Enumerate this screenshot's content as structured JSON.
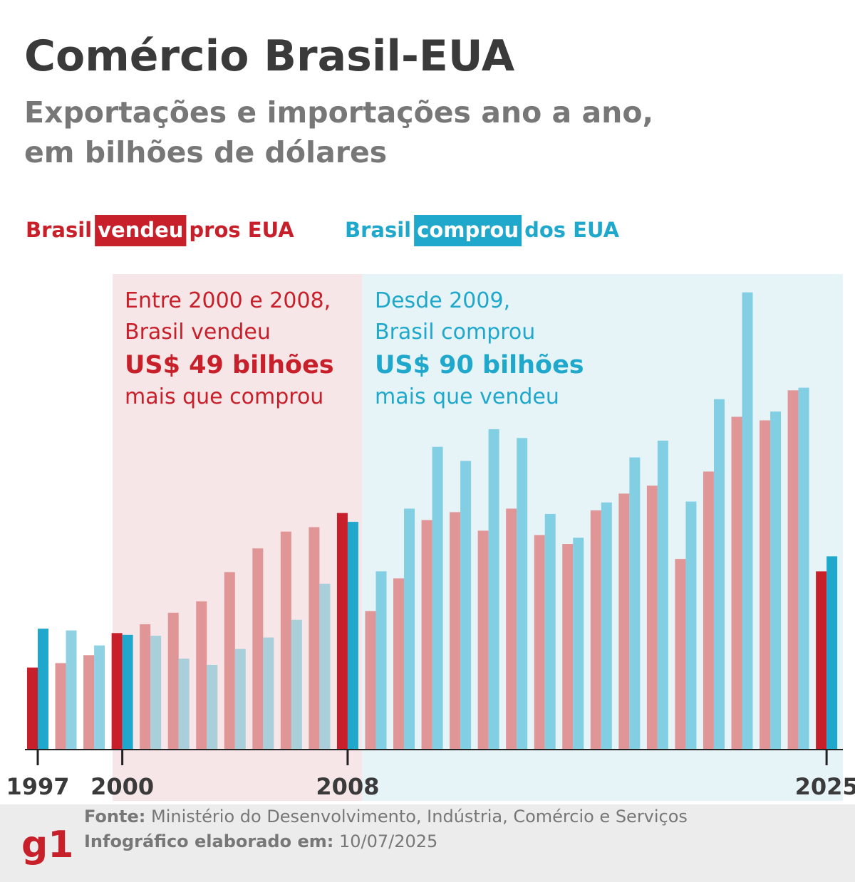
{
  "chart_data": {
    "type": "bar",
    "title": "Comércio Brasil-EUA",
    "subtitle_lines": [
      "Exportações e importações ano a ano,",
      "em bilhões de dólares"
    ],
    "legend_texts": [
      {
        "before": "Brasil",
        "after": "pros EUA"
      },
      {
        "before": "Brasil",
        "after": "dos EUA"
      }
    ],
    "categories": [
      "1997",
      null,
      null,
      "2000",
      null,
      null,
      null,
      null,
      null,
      null,
      null,
      "2008",
      null,
      null,
      null,
      null,
      null,
      null,
      null,
      null,
      null,
      null,
      null,
      null,
      null,
      null,
      null,
      null,
      "2025"
    ],
    "series": [
      {
        "name": "vendeu",
        "color": "#c8202a",
        "values": [
          9.3,
          9.8,
          10.7,
          13.2,
          14.2,
          15.5,
          16.8,
          20.1,
          22.8,
          24.7,
          25.2,
          26.8,
          15.7,
          19.4,
          26.0,
          26.9,
          24.8,
          27.3,
          24.3,
          23.3,
          27.1,
          29.0,
          29.9,
          21.6,
          31.5,
          37.7,
          37.3,
          40.7,
          20.2
        ],
        "colors": [
          "#c8202a",
          "#e09597",
          "#e09597",
          "#c8202a",
          "#e09597",
          "#e09597",
          "#e09597",
          "#e09597",
          "#e09597",
          "#e09597",
          "#e09597",
          "#c8202a",
          "#e09597",
          "#e09597",
          "#e09597",
          "#e09597",
          "#e09597",
          "#e09597",
          "#e09597",
          "#e09597",
          "#e09597",
          "#e09597",
          "#e09597",
          "#e09597",
          "#e09597",
          "#e09597",
          "#e09597",
          "#e09597",
          "#c8202a"
        ]
      },
      {
        "name": "comprou",
        "color": "#1fa8cc",
        "values": [
          13.7,
          13.5,
          11.8,
          13.0,
          12.9,
          10.3,
          9.6,
          11.4,
          12.7,
          14.7,
          18.8,
          25.8,
          20.2,
          27.3,
          34.3,
          32.7,
          36.3,
          35.3,
          26.7,
          24.0,
          28.0,
          33.1,
          35.0,
          28.1,
          39.7,
          51.8,
          38.3,
          41.0,
          21.9
        ],
        "colors": [
          "#1fa8cc",
          "#8fd0e3",
          "#8fd0e3",
          "#1fa8cc",
          "#a9cfdb",
          "#a9cfdb",
          "#a9cfdb",
          "#a9cfdb",
          "#a9cfdb",
          "#a9cfdb",
          "#a9cfdb",
          "#1fa8cc",
          "#82cfe3",
          "#82cfe3",
          "#82cfe3",
          "#82cfe3",
          "#82cfe3",
          "#82cfe3",
          "#82cfe3",
          "#82cfe3",
          "#82cfe3",
          "#82cfe3",
          "#82cfe3",
          "#82cfe3",
          "#82cfe3",
          "#82cfe3",
          "#82cfe3",
          "#82cfe3",
          "#1fa8cc"
        ]
      }
    ],
    "ylim": [
      0,
      54
    ],
    "annotations": [
      {
        "lines": [
          "Entre 2000 e 2008,",
          "Brasil vendeu",
          "US$ 49 bilhões",
          "mais que comprou"
        ]
      },
      {
        "lines": [
          "Desde 2009,",
          "Brasil comprou",
          "US$ 90 bilhões",
          "mais que vendeu"
        ]
      }
    ]
  },
  "footer": {
    "source_label": "Fonte:",
    "source": "Ministério do Desenvolvimento, Indústria, Comércio e Serviços",
    "date_label": "Infográfico elaborado em:",
    "date": "10/07/2025",
    "logo": "g1"
  }
}
